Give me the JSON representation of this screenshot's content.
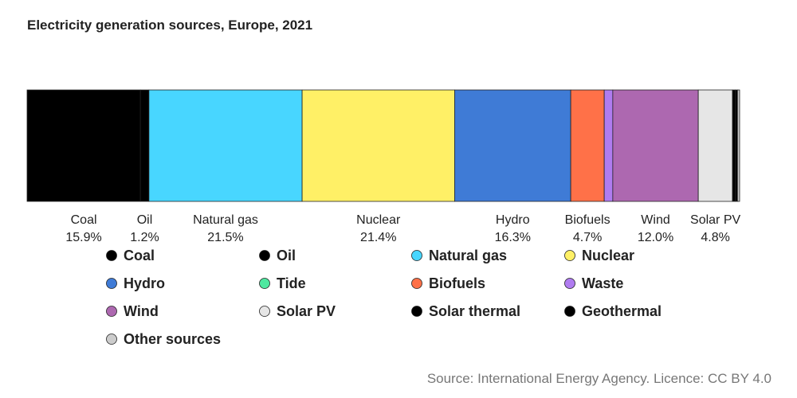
{
  "title": "Electricity generation sources, Europe, 2021",
  "source": "Source: International Energy Agency. Licence: CC BY 4.0",
  "chart_data": {
    "type": "bar",
    "stacked": "horizontal-100-percent",
    "title": "Electricity generation sources, Europe, 2021",
    "segments": [
      {
        "name": "Coal",
        "value": 15.9,
        "label": "15.9%",
        "color": "#000000"
      },
      {
        "name": "Oil",
        "value": 1.2,
        "label": "1.2%",
        "color": "#000000"
      },
      {
        "name": "Natural gas",
        "value": 21.5,
        "label": "21.5%",
        "color": "#48d6ff"
      },
      {
        "name": "Nuclear",
        "value": 21.4,
        "label": "21.4%",
        "color": "#fff066"
      },
      {
        "name": "Hydro",
        "value": 16.3,
        "label": "16.3%",
        "color": "#3f7bd6"
      },
      {
        "name": "Tide",
        "value": 0.0,
        "label": "",
        "color": "#4fe8a0"
      },
      {
        "name": "Biofuels",
        "value": 4.7,
        "label": "4.7%",
        "color": "#ff7148"
      },
      {
        "name": "Waste",
        "value": 1.2,
        "label": "",
        "color": "#b07cf0"
      },
      {
        "name": "Wind",
        "value": 12.0,
        "label": "12.0%",
        "color": "#ad68b0"
      },
      {
        "name": "Solar PV",
        "value": 4.8,
        "label": "4.8%",
        "color": "#e6e6e6"
      },
      {
        "name": "Solar thermal",
        "value": 0.4,
        "label": "",
        "color": "#000000"
      },
      {
        "name": "Geothermal",
        "value": 0.3,
        "label": "",
        "color": "#000000"
      },
      {
        "name": "Other sources",
        "value": 0.3,
        "label": "",
        "color": "#cccccc"
      }
    ],
    "legend": [
      {
        "name": "Coal",
        "color": "#000000"
      },
      {
        "name": "Oil",
        "color": "#000000"
      },
      {
        "name": "Natural gas",
        "color": "#48d6ff"
      },
      {
        "name": "Nuclear",
        "color": "#fff066"
      },
      {
        "name": "Hydro",
        "color": "#3f7bd6"
      },
      {
        "name": "Tide",
        "color": "#4fe8a0"
      },
      {
        "name": "Biofuels",
        "color": "#ff7148"
      },
      {
        "name": "Waste",
        "color": "#b07cf0"
      },
      {
        "name": "Wind",
        "color": "#ad68b0"
      },
      {
        "name": "Solar PV",
        "color": "#e6e6e6"
      },
      {
        "name": "Solar thermal",
        "color": "#000000"
      },
      {
        "name": "Geothermal",
        "color": "#000000"
      },
      {
        "name": "Other sources",
        "color": "#cccccc"
      }
    ],
    "legend_placement": "bottom",
    "grid": false
  }
}
